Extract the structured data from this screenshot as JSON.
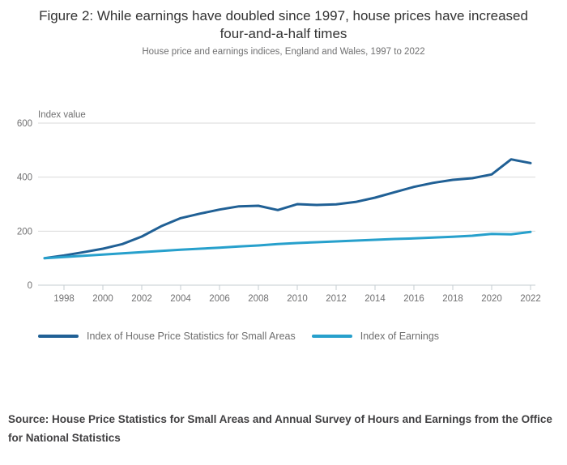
{
  "title": "Figure 2: While earnings have doubled since 1997, house prices have increased four-and-a-half times",
  "subtitle": "House price and earnings indices, England and Wales, 1997 to 2022",
  "source": "Source: House Price Statistics for Small Areas and Annual Survey of Hours and Earnings from the Office for National Statistics",
  "chart_data": {
    "type": "line",
    "title": "Figure 2: While earnings have doubled since 1997, house prices have increased four-and-a-half times",
    "subtitle": "House price and earnings indices, England and Wales, 1997 to 2022",
    "ylabel": "Index value",
    "xlabel": "",
    "ylim": [
      0,
      600
    ],
    "yticks": [
      0,
      200,
      400,
      600
    ],
    "xticks": [
      1998,
      2000,
      2002,
      2004,
      2006,
      2008,
      2010,
      2012,
      2014,
      2016,
      2018,
      2020,
      2022
    ],
    "grid": "horizontal",
    "legend_position": "bottom",
    "x": [
      1997,
      1998,
      1999,
      2000,
      2001,
      2002,
      2003,
      2004,
      2005,
      2006,
      2007,
      2008,
      2009,
      2010,
      2011,
      2012,
      2013,
      2014,
      2015,
      2016,
      2017,
      2018,
      2019,
      2020,
      2021,
      2022
    ],
    "series": [
      {
        "name": "Index of House Price Statistics for Small Areas",
        "color": "#206095",
        "values": [
          100,
          110,
          122,
          135,
          152,
          180,
          218,
          248,
          265,
          280,
          292,
          294,
          278,
          300,
          297,
          299,
          308,
          324,
          344,
          364,
          379,
          390,
          396,
          410,
          466,
          452
        ]
      },
      {
        "name": "Index of Earnings",
        "color": "#27a0cc",
        "values": [
          100,
          104,
          109,
          113,
          118,
          122,
          127,
          131,
          135,
          139,
          143,
          147,
          152,
          156,
          159,
          162,
          165,
          168,
          171,
          173,
          176,
          179,
          183,
          190,
          188,
          197
        ]
      }
    ],
    "axis_text_color": "#707071",
    "gridline_color": "#dadada",
    "axisline_color": "#c6ccd2"
  }
}
